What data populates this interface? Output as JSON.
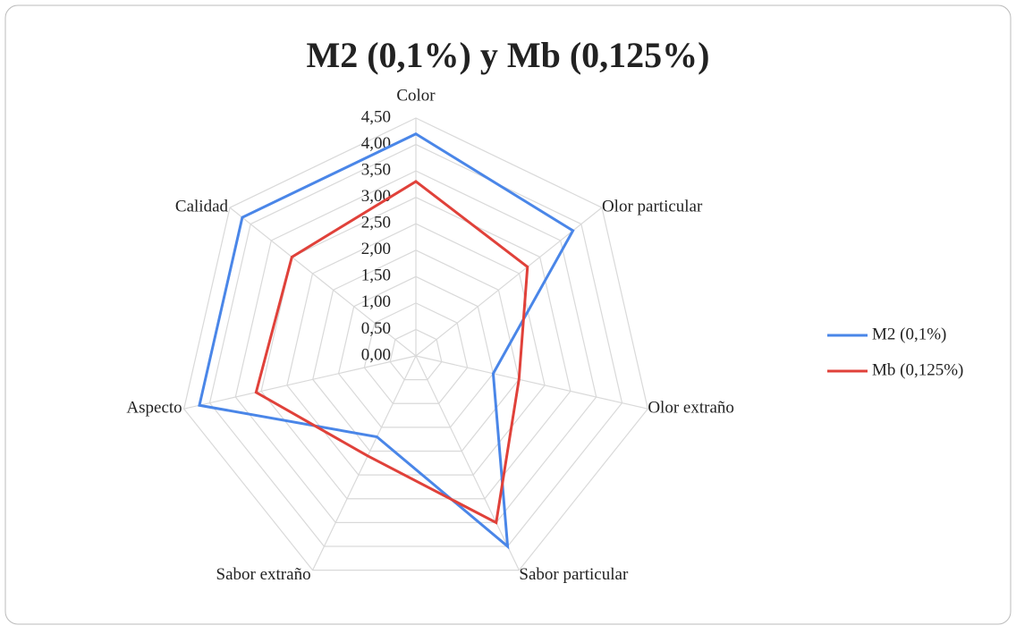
{
  "chart_data": {
    "type": "radar",
    "title": "M2 (0,1%) y Mb (0,125%)",
    "categories": [
      "Color",
      "Olor particular",
      "Olor extraño",
      "Sabor particular",
      "Sabor extraño",
      "Aspecto",
      "Calidad"
    ],
    "series": [
      {
        "name": "M2 (0,1%)",
        "color": "#4a86e8",
        "values": [
          4.2,
          3.8,
          1.5,
          4.0,
          1.7,
          4.2,
          4.2
        ]
      },
      {
        "name": "Mb (0,125%)",
        "color": "#e0413a",
        "values": [
          3.3,
          2.7,
          2.0,
          3.5,
          2.1,
          3.1,
          3.0
        ]
      }
    ],
    "ylim": [
      0,
      4.5
    ],
    "yticks": [
      {
        "value": 0,
        "label": "0,00"
      },
      {
        "value": 0.5,
        "label": "0,50"
      },
      {
        "value": 1,
        "label": "1,00"
      },
      {
        "value": 1.5,
        "label": "1,50"
      },
      {
        "value": 2,
        "label": "2,00"
      },
      {
        "value": 2.5,
        "label": "2,50"
      },
      {
        "value": 3,
        "label": "3,00"
      },
      {
        "value": 3.5,
        "label": "3,50"
      },
      {
        "value": 4,
        "label": "4,00"
      },
      {
        "value": 4.5,
        "label": "4,50"
      }
    ],
    "legend": "right"
  }
}
